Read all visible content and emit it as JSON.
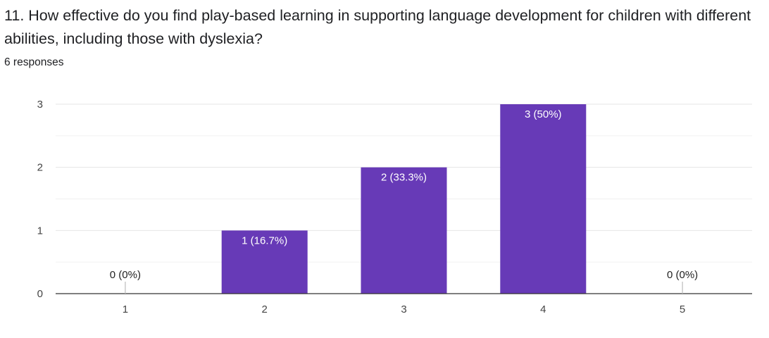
{
  "question": {
    "title": "11. How effective do you find play-based learning in supporting language development for children with different abilities, including those with dyslexia?",
    "responses": "6 responses"
  },
  "chart_data": {
    "type": "bar",
    "categories": [
      "1",
      "2",
      "3",
      "4",
      "5"
    ],
    "values": [
      0,
      1,
      2,
      3,
      0
    ],
    "data_labels": [
      "0 (0%)",
      "1 (16.7%)",
      "2 (33.3%)",
      "3 (50%)",
      "0 (0%)"
    ],
    "ylim": [
      0,
      3
    ],
    "yticks": [
      0,
      1,
      2,
      3
    ],
    "grid": true,
    "bar_color": "#673ab7",
    "title": "",
    "xlabel": "",
    "ylabel": ""
  }
}
